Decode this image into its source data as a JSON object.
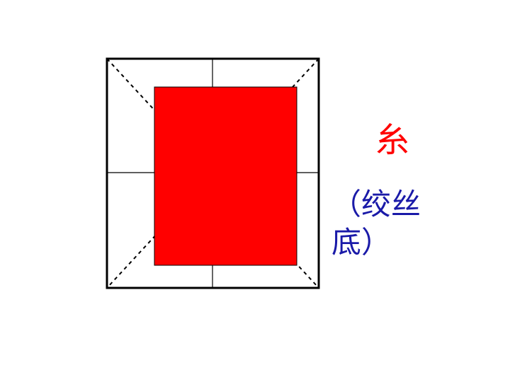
{
  "diagram": {
    "colors": {
      "outline": "#000000",
      "fill": "#ff0000",
      "char": "#ff0000",
      "note": "#1a1aa8"
    },
    "character": "糸",
    "note": "（绞丝底）"
  }
}
